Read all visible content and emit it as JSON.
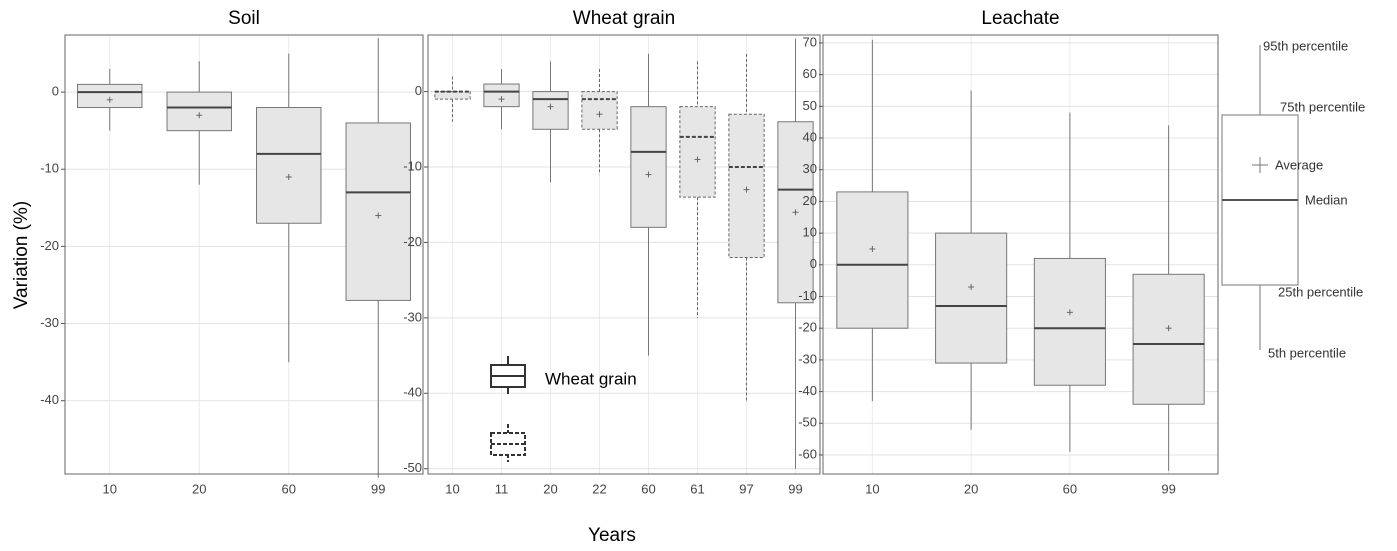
{
  "figure": {
    "y_label": "Variation (%)",
    "x_label": "Years"
  },
  "key": {
    "p95": "95th percentile",
    "p75": "75th percentile",
    "average": "Average",
    "median": "Median",
    "p25": "25th percentile",
    "p5": "5th percentile"
  },
  "chart_data": [
    {
      "type": "box",
      "title": "Soil",
      "categories": [
        "10",
        "20",
        "60",
        "99"
      ],
      "ylim": [
        -49.5,
        7.4
      ],
      "yticks": [
        0,
        -10,
        -20,
        -30,
        -40
      ],
      "grid": true,
      "color": "#e6e6e6",
      "boxes": [
        {
          "low": -5,
          "q1": -2,
          "median": 0,
          "q3": 1,
          "high": 3,
          "mean": -1,
          "dashed": false
        },
        {
          "low": -12,
          "q1": -5,
          "median": -2,
          "q3": 0,
          "high": 4,
          "mean": -3,
          "dashed": false
        },
        {
          "low": -35,
          "q1": -17,
          "median": -8,
          "q3": -2,
          "high": 5,
          "mean": -11,
          "dashed": false
        },
        {
          "low": -50,
          "q1": -27,
          "median": -13,
          "q3": -4,
          "high": 7,
          "mean": -16,
          "dashed": false
        }
      ]
    },
    {
      "type": "box",
      "title": "Wheat grain",
      "categories": [
        "10",
        "11",
        "20",
        "22",
        "60",
        "61",
        "97",
        "99"
      ],
      "ylim": [
        -50.7,
        7.5
      ],
      "yticks": [
        0,
        -10,
        -20,
        -30,
        -40,
        -50
      ],
      "grid": true,
      "color": "#e6e6e6",
      "legend": [
        {
          "label": "Wheat grain",
          "dashed": false
        },
        {
          "dashed": true
        }
      ],
      "boxes": [
        {
          "low": -4,
          "q1": -1,
          "median": 0,
          "q3": 0,
          "high": 2,
          "mean": null,
          "dashed": true
        },
        {
          "low": -5,
          "q1": -2,
          "median": 0,
          "q3": 1,
          "high": 3,
          "mean": -1,
          "dashed": false
        },
        {
          "low": -12,
          "q1": -5,
          "median": -1,
          "q3": 0,
          "high": 4,
          "mean": -2,
          "dashed": false
        },
        {
          "low": -11,
          "q1": -5,
          "median": -1,
          "q3": 0,
          "high": 3,
          "mean": -3,
          "dashed": true
        },
        {
          "low": -35,
          "q1": -18,
          "median": -8,
          "q3": -2,
          "high": 5,
          "mean": -11,
          "dashed": false
        },
        {
          "low": -30,
          "q1": -14,
          "median": -6,
          "q3": -2,
          "high": 4,
          "mean": -9,
          "dashed": true
        },
        {
          "low": -41,
          "q1": -22,
          "median": -10,
          "q3": -3,
          "high": 5,
          "mean": -13,
          "dashed": true
        },
        {
          "low": -50,
          "q1": -28,
          "median": -13,
          "q3": -4,
          "high": 7,
          "mean": -16,
          "dashed": false
        }
      ]
    },
    {
      "type": "box",
      "title": "Leachate",
      "categories": [
        "10",
        "20",
        "60",
        "99"
      ],
      "ylim": [
        -66,
        72.5
      ],
      "yticks": [
        70,
        60,
        50,
        40,
        30,
        20,
        10,
        0,
        -10,
        -20,
        -30,
        -40,
        -50,
        -60
      ],
      "grid": true,
      "color": "#e6e6e6",
      "boxes": [
        {
          "low": -43,
          "q1": -20,
          "median": 0,
          "q3": 23,
          "high": 71,
          "mean": 5,
          "dashed": false
        },
        {
          "low": -52,
          "q1": -31,
          "median": -13,
          "q3": 10,
          "high": 55,
          "mean": -7,
          "dashed": false
        },
        {
          "low": -59,
          "q1": -38,
          "median": -20,
          "q3": 2,
          "high": 48,
          "mean": -15,
          "dashed": false
        },
        {
          "low": -65,
          "q1": -44,
          "median": -25,
          "q3": -3,
          "high": 44,
          "mean": -20,
          "dashed": false
        }
      ]
    }
  ]
}
